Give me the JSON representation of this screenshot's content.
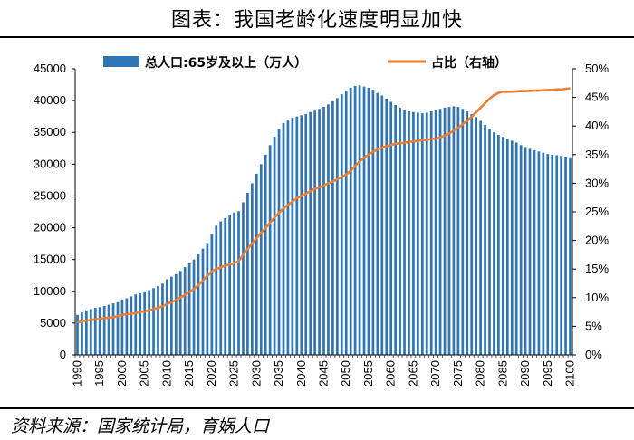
{
  "title": "图表：我国老龄化速度明显加快",
  "source": "资料来源：国家统计局，育娲人口",
  "chart_data": {
    "type": "bar",
    "x": [
      1990,
      1991,
      1992,
      1993,
      1994,
      1995,
      1996,
      1997,
      1998,
      1999,
      2000,
      2001,
      2002,
      2003,
      2004,
      2005,
      2006,
      2007,
      2008,
      2009,
      2010,
      2011,
      2012,
      2013,
      2014,
      2015,
      2016,
      2017,
      2018,
      2019,
      2020,
      2021,
      2022,
      2023,
      2024,
      2025,
      2026,
      2027,
      2028,
      2029,
      2030,
      2031,
      2032,
      2033,
      2034,
      2035,
      2036,
      2037,
      2038,
      2039,
      2040,
      2041,
      2042,
      2043,
      2044,
      2045,
      2046,
      2047,
      2048,
      2049,
      2050,
      2051,
      2052,
      2053,
      2054,
      2055,
      2056,
      2057,
      2058,
      2059,
      2060,
      2061,
      2062,
      2063,
      2064,
      2065,
      2066,
      2067,
      2068,
      2069,
      2070,
      2071,
      2072,
      2073,
      2074,
      2075,
      2076,
      2077,
      2078,
      2079,
      2080,
      2081,
      2082,
      2083,
      2084,
      2085,
      2086,
      2087,
      2088,
      2089,
      2090,
      2091,
      2092,
      2093,
      2094,
      2095,
      2096,
      2097,
      2098,
      2099,
      2100
    ],
    "series": [
      {
        "name": "总人口:65岁及以上（万人）",
        "type": "bar",
        "axis": "left",
        "color": "#2e75b6",
        "values": [
          6300,
          6700,
          7000,
          7200,
          7400,
          7500,
          7700,
          7900,
          8100,
          8300,
          8700,
          8900,
          9200,
          9500,
          9700,
          10000,
          10200,
          10500,
          10800,
          11200,
          11900,
          12300,
          12700,
          13200,
          13800,
          14400,
          15000,
          15800,
          16700,
          17600,
          19000,
          20300,
          21000,
          21500,
          22000,
          22400,
          22600,
          24000,
          25500,
          27000,
          28500,
          30000,
          31500,
          33000,
          34300,
          35500,
          36500,
          37000,
          37300,
          37500,
          37700,
          37900,
          38200,
          38400,
          38700,
          39000,
          39400,
          39900,
          40400,
          41000,
          41600,
          42000,
          42300,
          42400,
          42200,
          42000,
          41700,
          41200,
          40800,
          40300,
          39800,
          39300,
          38900,
          38500,
          38300,
          38200,
          38100,
          38000,
          38100,
          38300,
          38500,
          38700,
          38900,
          39000,
          39100,
          39000,
          38700,
          38300,
          37900,
          37400,
          36800,
          36200,
          35600,
          35000,
          34600,
          34300,
          34000,
          33700,
          33400,
          33000,
          32700,
          32400,
          32200,
          32000,
          31800,
          31600,
          31500,
          31400,
          31300,
          31200,
          31100
        ]
      },
      {
        "name": "占比（右轴）",
        "type": "line",
        "axis": "right",
        "color": "#ed7d31",
        "values": [
          5.6,
          5.9,
          6.0,
          6.1,
          6.2,
          6.3,
          6.4,
          6.5,
          6.6,
          6.8,
          7.0,
          7.1,
          7.2,
          7.3,
          7.5,
          7.6,
          7.8,
          8.0,
          8.2,
          8.5,
          8.9,
          9.2,
          9.6,
          10.0,
          10.5,
          11.0,
          11.5,
          12.2,
          13.0,
          13.8,
          14.6,
          15.0,
          15.3,
          15.6,
          15.8,
          16.0,
          16.4,
          17.5,
          18.5,
          19.5,
          20.4,
          21.3,
          22.2,
          23.1,
          24.0,
          24.8,
          25.6,
          26.2,
          26.8,
          27.4,
          27.8,
          28.2,
          28.6,
          29.0,
          29.3,
          29.6,
          30.0,
          30.3,
          30.7,
          31.1,
          31.5,
          32.2,
          33.0,
          33.8,
          34.5,
          35.0,
          35.5,
          35.9,
          36.2,
          36.5,
          36.7,
          36.9,
          37.0,
          37.1,
          37.2,
          37.3,
          37.4,
          37.5,
          37.6,
          37.7,
          37.8,
          38.0,
          38.3,
          38.7,
          39.2,
          39.7,
          40.3,
          40.9,
          41.6,
          42.4,
          43.2,
          44.0,
          44.8,
          45.4,
          45.8,
          46.0,
          46.0,
          46.0,
          46.05,
          46.1,
          46.1,
          46.15,
          46.2,
          46.2,
          46.25,
          46.3,
          46.3,
          46.4,
          46.4,
          46.5,
          46.6
        ]
      }
    ],
    "x_ticks": [
      "1990",
      "1995",
      "2000",
      "2005",
      "2010",
      "2015",
      "2020",
      "2025",
      "2030",
      "2035",
      "2040",
      "2045",
      "2050",
      "2055",
      "2060",
      "2065",
      "2070",
      "2075",
      "2080",
      "2085",
      "2090",
      "2095",
      "2100"
    ],
    "y_left_ticks": [
      "0",
      "5000",
      "10000",
      "15000",
      "20000",
      "25000",
      "30000",
      "35000",
      "40000",
      "45000"
    ],
    "y_right_ticks": [
      "0%",
      "5%",
      "10%",
      "15%",
      "20%",
      "25%",
      "30%",
      "35%",
      "40%",
      "45%",
      "50%"
    ],
    "ylim_left": [
      0,
      45000
    ],
    "ylim_right": [
      0,
      50
    ],
    "legend_position": "top-center",
    "grid": false
  }
}
